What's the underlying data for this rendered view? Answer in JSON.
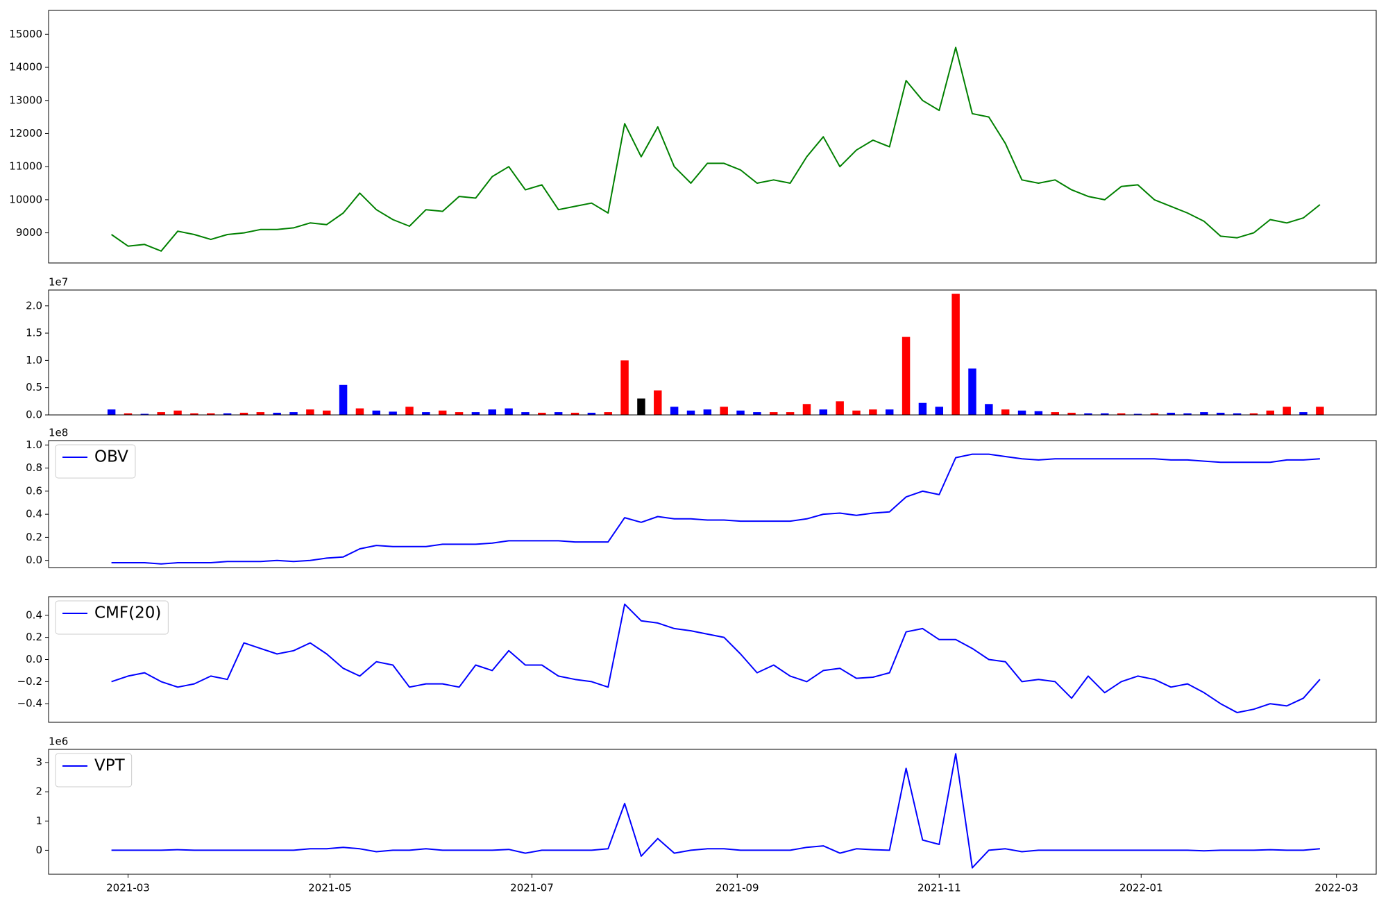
{
  "chart_data": [
    {
      "type": "line",
      "color": "green",
      "x": [
        54,
        59,
        64,
        69,
        74,
        79,
        84,
        89,
        94,
        99,
        104,
        109,
        114,
        119,
        124,
        129,
        134,
        139,
        144,
        149,
        154,
        159,
        164,
        169,
        174,
        179,
        184,
        189,
        194,
        199,
        204,
        209,
        214,
        219,
        224,
        229,
        234,
        239,
        244,
        249,
        254,
        259,
        264,
        269,
        274,
        279,
        284,
        289,
        294,
        299,
        304,
        309,
        314,
        319,
        324,
        329,
        334,
        339,
        344,
        349,
        354,
        359,
        364,
        369,
        374,
        379,
        384,
        389,
        394,
        399,
        404,
        409,
        414,
        419
      ],
      "values": [
        8950,
        8600,
        8650,
        8450,
        9050,
        8950,
        8800,
        8950,
        9000,
        9100,
        9100,
        9150,
        9300,
        9250,
        9600,
        10200,
        9700,
        9400,
        9200,
        9700,
        9650,
        10100,
        10050,
        10700,
        11000,
        10300,
        10450,
        9700,
        9800,
        9900,
        9600,
        12300,
        11300,
        12200,
        11000,
        10500,
        11100,
        11100,
        10900,
        10500,
        10600,
        10500,
        11300,
        11900,
        11000,
        11500,
        11800,
        11600,
        13600,
        13000,
        12700,
        14600,
        12600,
        12500,
        11700,
        10600,
        10500,
        10600,
        10300,
        10100,
        10000,
        10400,
        10450,
        10000,
        9800,
        9600,
        9350,
        8900,
        8850,
        9000,
        9400,
        9300,
        9450,
        9850
      ],
      "xlim": [
        35,
        436
      ],
      "ylim": [
        8090,
        15720
      ],
      "yticks": [
        9000,
        10000,
        11000,
        12000,
        13000,
        14000,
        15000
      ]
    },
    {
      "type": "bar",
      "offset_text": "1e7",
      "x": [
        54,
        59,
        64,
        69,
        74,
        79,
        84,
        89,
        94,
        99,
        104,
        109,
        114,
        119,
        124,
        129,
        134,
        139,
        144,
        149,
        154,
        159,
        164,
        169,
        174,
        179,
        184,
        189,
        194,
        199,
        204,
        209,
        214,
        219,
        224,
        229,
        234,
        239,
        244,
        249,
        254,
        259,
        264,
        269,
        274,
        279,
        284,
        289,
        294,
        299,
        304,
        309,
        314,
        319,
        324,
        329,
        334,
        339,
        344,
        349,
        354,
        359,
        364,
        369,
        374,
        379,
        384,
        389,
        394,
        399,
        404,
        409,
        414,
        419
      ],
      "values": [
        0.1,
        0.03,
        0.02,
        0.05,
        0.08,
        0.03,
        0.03,
        0.03,
        0.04,
        0.05,
        0.04,
        0.05,
        0.1,
        0.08,
        0.55,
        0.12,
        0.08,
        0.06,
        0.15,
        0.05,
        0.08,
        0.05,
        0.05,
        0.1,
        0.12,
        0.05,
        0.04,
        0.05,
        0.04,
        0.04,
        0.05,
        1.0,
        0.3,
        0.45,
        0.15,
        0.08,
        0.1,
        0.15,
        0.08,
        0.05,
        0.05,
        0.05,
        0.2,
        0.1,
        0.25,
        0.08,
        0.1,
        0.1,
        1.43,
        0.22,
        0.15,
        2.22,
        0.85,
        0.2,
        0.1,
        0.08,
        0.07,
        0.05,
        0.04,
        0.03,
        0.03,
        0.03,
        0.02,
        0.03,
        0.04,
        0.03,
        0.05,
        0.04,
        0.03,
        0.03,
        0.08,
        0.15,
        0.05,
        0.15
      ],
      "colors": [
        "blue",
        "red",
        "blue",
        "red",
        "red",
        "red",
        "red",
        "blue",
        "red",
        "red",
        "blue",
        "blue",
        "red",
        "red",
        "blue",
        "red",
        "blue",
        "blue",
        "red",
        "blue",
        "red",
        "red",
        "blue",
        "blue",
        "blue",
        "blue",
        "red",
        "blue",
        "red",
        "blue",
        "red",
        "red",
        "black",
        "red",
        "blue",
        "blue",
        "blue",
        "red",
        "blue",
        "blue",
        "red",
        "red",
        "red",
        "blue",
        "red",
        "red",
        "red",
        "blue",
        "red",
        "blue",
        "blue",
        "red",
        "blue",
        "blue",
        "red",
        "blue",
        "blue",
        "red",
        "red",
        "blue",
        "blue",
        "red",
        "blue",
        "red",
        "blue",
        "blue",
        "blue",
        "blue",
        "blue",
        "red",
        "red",
        "red",
        "blue",
        "red"
      ],
      "xlim": [
        35,
        436
      ],
      "ylim": [
        0,
        2.29
      ],
      "yticks": [
        {
          "value": 0,
          "label": "0.0"
        },
        0.5,
        {
          "value": 1,
          "label": "1.0"
        },
        1.5,
        {
          "value": 2,
          "label": "2.0"
        }
      ]
    },
    {
      "type": "line",
      "offset_text": "1e8",
      "legend": "upper left",
      "x": [
        54,
        59,
        64,
        69,
        74,
        79,
        84,
        89,
        94,
        99,
        104,
        109,
        114,
        119,
        124,
        129,
        134,
        139,
        144,
        149,
        154,
        159,
        164,
        169,
        174,
        179,
        184,
        189,
        194,
        199,
        204,
        209,
        214,
        219,
        224,
        229,
        234,
        239,
        244,
        249,
        254,
        259,
        264,
        269,
        274,
        279,
        284,
        289,
        294,
        299,
        304,
        309,
        314,
        319,
        324,
        329,
        334,
        339,
        344,
        349,
        354,
        359,
        364,
        369,
        374,
        379,
        384,
        389,
        394,
        399,
        404,
        409,
        414,
        419
      ],
      "series": [
        {
          "name": "OBV",
          "color": "blue",
          "values": [
            -0.02,
            -0.02,
            -0.02,
            -0.03,
            -0.02,
            -0.02,
            -0.02,
            -0.01,
            -0.01,
            -0.01,
            0.0,
            -0.01,
            0.0,
            0.02,
            0.03,
            0.1,
            0.13,
            0.12,
            0.12,
            0.12,
            0.14,
            0.14,
            0.14,
            0.15,
            0.17,
            0.17,
            0.17,
            0.17,
            0.16,
            0.16,
            0.16,
            0.37,
            0.33,
            0.38,
            0.36,
            0.36,
            0.35,
            0.35,
            0.34,
            0.34,
            0.34,
            0.34,
            0.36,
            0.4,
            0.41,
            0.39,
            0.41,
            0.42,
            0.55,
            0.6,
            0.57,
            0.89,
            0.92,
            0.92,
            0.9,
            0.88,
            0.87,
            0.88,
            0.88,
            0.88,
            0.88,
            0.88,
            0.88,
            0.88,
            0.87,
            0.87,
            0.86,
            0.85,
            0.85,
            0.85,
            0.85,
            0.87,
            0.87,
            0.88
          ]
        }
      ],
      "xlim": [
        35,
        436
      ],
      "ylim": [
        -0.062,
        1.038
      ],
      "yticks": [
        {
          "value": 0,
          "label": "0.0"
        },
        0.2,
        0.4,
        0.6,
        0.8,
        {
          "value": 1,
          "label": "1.0"
        }
      ]
    },
    {
      "type": "line",
      "legend": "upper left",
      "x": [
        54,
        59,
        64,
        69,
        74,
        79,
        84,
        89,
        94,
        99,
        104,
        109,
        114,
        119,
        124,
        129,
        134,
        139,
        144,
        149,
        154,
        159,
        164,
        169,
        174,
        179,
        184,
        189,
        194,
        199,
        204,
        209,
        214,
        219,
        224,
        229,
        234,
        239,
        244,
        249,
        254,
        259,
        264,
        269,
        274,
        279,
        284,
        289,
        294,
        299,
        304,
        309,
        314,
        319,
        324,
        329,
        334,
        339,
        344,
        349,
        354,
        359,
        364,
        369,
        374,
        379,
        384,
        389,
        394,
        399,
        404,
        409,
        414,
        419
      ],
      "series": [
        {
          "name": "CMF(20)",
          "color": "blue",
          "values": [
            -0.2,
            -0.15,
            -0.12,
            -0.2,
            -0.25,
            -0.22,
            -0.15,
            -0.18,
            0.15,
            0.1,
            0.05,
            0.08,
            0.15,
            0.05,
            -0.08,
            -0.15,
            -0.02,
            -0.05,
            -0.25,
            -0.22,
            -0.22,
            -0.25,
            -0.05,
            -0.1,
            0.08,
            -0.05,
            -0.05,
            -0.15,
            -0.18,
            -0.2,
            -0.25,
            0.5,
            0.35,
            0.33,
            0.28,
            0.26,
            0.23,
            0.2,
            0.05,
            -0.12,
            -0.05,
            -0.15,
            -0.2,
            -0.1,
            -0.08,
            -0.17,
            -0.16,
            -0.12,
            0.25,
            0.28,
            0.18,
            0.18,
            0.1,
            0.0,
            -0.02,
            -0.2,
            -0.18,
            -0.2,
            -0.35,
            -0.15,
            -0.3,
            -0.2,
            -0.15,
            -0.18,
            -0.25,
            -0.22,
            -0.3,
            -0.4,
            -0.48,
            -0.45,
            -0.4,
            -0.42,
            -0.35,
            -0.18
          ]
        }
      ],
      "xlim": [
        35,
        436
      ],
      "ylim": [
        -0.568,
        0.568
      ],
      "yticks": [
        {
          "value": -0.4,
          "label": "−0.4"
        },
        {
          "value": -0.2,
          "label": "−0.2"
        },
        {
          "value": 0,
          "label": "0.0"
        },
        0.2,
        0.4
      ]
    },
    {
      "type": "line",
      "offset_text": "1e6",
      "legend": "upper left",
      "x": [
        54,
        59,
        64,
        69,
        74,
        79,
        84,
        89,
        94,
        99,
        104,
        109,
        114,
        119,
        124,
        129,
        134,
        139,
        144,
        149,
        154,
        159,
        164,
        169,
        174,
        179,
        184,
        189,
        194,
        199,
        204,
        209,
        214,
        219,
        224,
        229,
        234,
        239,
        244,
        249,
        254,
        259,
        264,
        269,
        274,
        279,
        284,
        289,
        294,
        299,
        304,
        309,
        314,
        319,
        324,
        329,
        334,
        339,
        344,
        349,
        354,
        359,
        364,
        369,
        374,
        379,
        384,
        389,
        394,
        399,
        404,
        409,
        414,
        419
      ],
      "series": [
        {
          "name": "VPT",
          "color": "blue",
          "values": [
            0,
            0,
            0,
            0,
            0.02,
            0,
            0,
            0,
            0,
            0,
            0,
            0,
            0.05,
            0.05,
            0.1,
            0.05,
            -0.05,
            0,
            0,
            0.05,
            0,
            0,
            0,
            0,
            0.03,
            -0.1,
            0,
            0,
            0,
            0,
            0.05,
            1.6,
            -0.2,
            0.4,
            -0.1,
            0,
            0.05,
            0.05,
            0,
            0,
            0,
            0,
            0.1,
            0.15,
            -0.1,
            0.05,
            0.02,
            0,
            2.8,
            0.35,
            0.2,
            3.3,
            -0.6,
            0.0,
            0.05,
            -0.05,
            0,
            0,
            0,
            0,
            0,
            0,
            0,
            0,
            0,
            0,
            -0.02,
            0,
            0,
            0,
            0.02,
            0,
            0,
            0.05
          ]
        }
      ],
      "xlim": [
        35,
        436
      ],
      "ylim": [
        -0.82,
        3.45
      ],
      "yticks": [
        0,
        1,
        2,
        3
      ],
      "xticks": [
        {
          "value": 59,
          "label": "2021-03"
        },
        {
          "value": 120,
          "label": "2021-05"
        },
        {
          "value": 181,
          "label": "2021-07"
        },
        {
          "value": 243,
          "label": "2021-09"
        },
        {
          "value": 304,
          "label": "2021-11"
        },
        {
          "value": 365,
          "label": "2022-01"
        },
        {
          "value": 424,
          "label": "2022-03"
        }
      ]
    }
  ]
}
